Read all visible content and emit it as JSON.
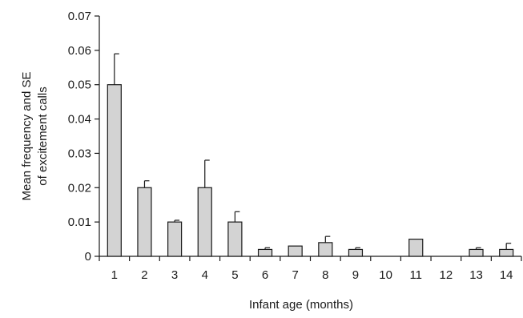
{
  "chart_data": {
    "type": "bar",
    "title": "",
    "xlabel": "Infant age (months)",
    "ylabel_lines": [
      "Mean frequency and SE",
      "of excitement calls"
    ],
    "categories": [
      "1",
      "2",
      "3",
      "4",
      "5",
      "6",
      "7",
      "8",
      "9",
      "10",
      "11",
      "12",
      "13",
      "14"
    ],
    "values": [
      0.05,
      0.02,
      0.01,
      0.02,
      0.01,
      0.002,
      0.003,
      0.004,
      0.002,
      0,
      0.005,
      0,
      0.002,
      0.002
    ],
    "se": [
      0.009,
      0.002,
      0.0005,
      0.008,
      0.003,
      0.0005,
      0,
      0.0018,
      0.0005,
      0,
      0,
      0,
      0.0005,
      0.0018
    ],
    "ylim": [
      0,
      0.07
    ],
    "yticks": [
      "0",
      "0.01",
      "0.02",
      "0.03",
      "0.04",
      "0.05",
      "0.06",
      "0.07"
    ],
    "grid": false,
    "bar_color": "#d3d3d3",
    "line_color": "#1a1a1a"
  }
}
